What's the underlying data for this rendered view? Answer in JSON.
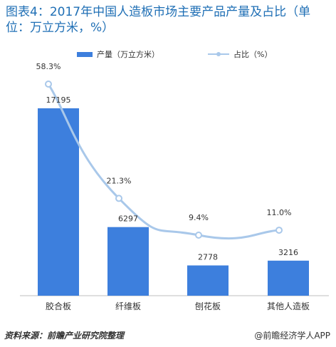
{
  "title": "图表4：2017年中国人造板市场主要产品产量及占比（单位：万立方米，%）",
  "colors": {
    "bar": "#3d7fdd",
    "line": "#a9c8ea",
    "marker": "#a9c8ea",
    "title": "#1f6fb5"
  },
  "chart_data": {
    "type": "bar",
    "categories": [
      "胶合板",
      "纤维板",
      "刨花板",
      "其他人造板"
    ],
    "series": [
      {
        "name": "产量（万立方米）",
        "type": "bar",
        "values": [
          17195,
          6297,
          2778,
          3216
        ],
        "labels": [
          "17195",
          "6297",
          "2778",
          "3216"
        ]
      },
      {
        "name": "占比（%）",
        "type": "line",
        "values": [
          58.3,
          21.3,
          9.4,
          11.0
        ],
        "labels": [
          "58.3%",
          "21.3%",
          "9.4%",
          "11.0%"
        ]
      }
    ],
    "legend_position": "top",
    "grid": false
  },
  "footer": {
    "source": "资料来源：前瞻产业研究院整理",
    "brand": "@前瞻经济学人APP"
  }
}
